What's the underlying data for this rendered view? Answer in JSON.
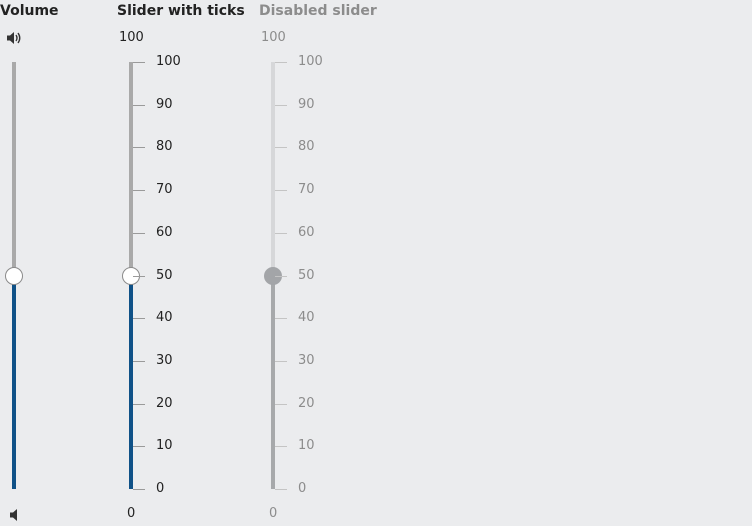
{
  "volume_slider": {
    "label": "Volume",
    "value": 50,
    "min": 0,
    "max": 100,
    "max_icon": "speaker-loud-icon",
    "min_icon": "speaker-quiet-icon",
    "colors": {
      "fill": "#0f5187",
      "rail": "#a9a9a9"
    }
  },
  "ticks_slider": {
    "label": "Slider with ticks",
    "value": 50,
    "min": 0,
    "max": 100,
    "max_label": "100",
    "min_label": "0",
    "tick_labels": [
      "100",
      "90",
      "80",
      "70",
      "60",
      "50",
      "40",
      "30",
      "20",
      "10",
      "0"
    ],
    "colors": {
      "fill": "#0f5187",
      "rail": "#a9a9a9"
    }
  },
  "disabled_slider": {
    "label": "Disabled slider",
    "value": 50,
    "min": 0,
    "max": 100,
    "max_label": "100",
    "min_label": "0",
    "tick_labels": [
      "100",
      "90",
      "80",
      "70",
      "60",
      "50",
      "40",
      "30",
      "20",
      "10",
      "0"
    ],
    "colors": {
      "fill": "#a7a9ab",
      "rail": "#d6d7d9"
    }
  }
}
